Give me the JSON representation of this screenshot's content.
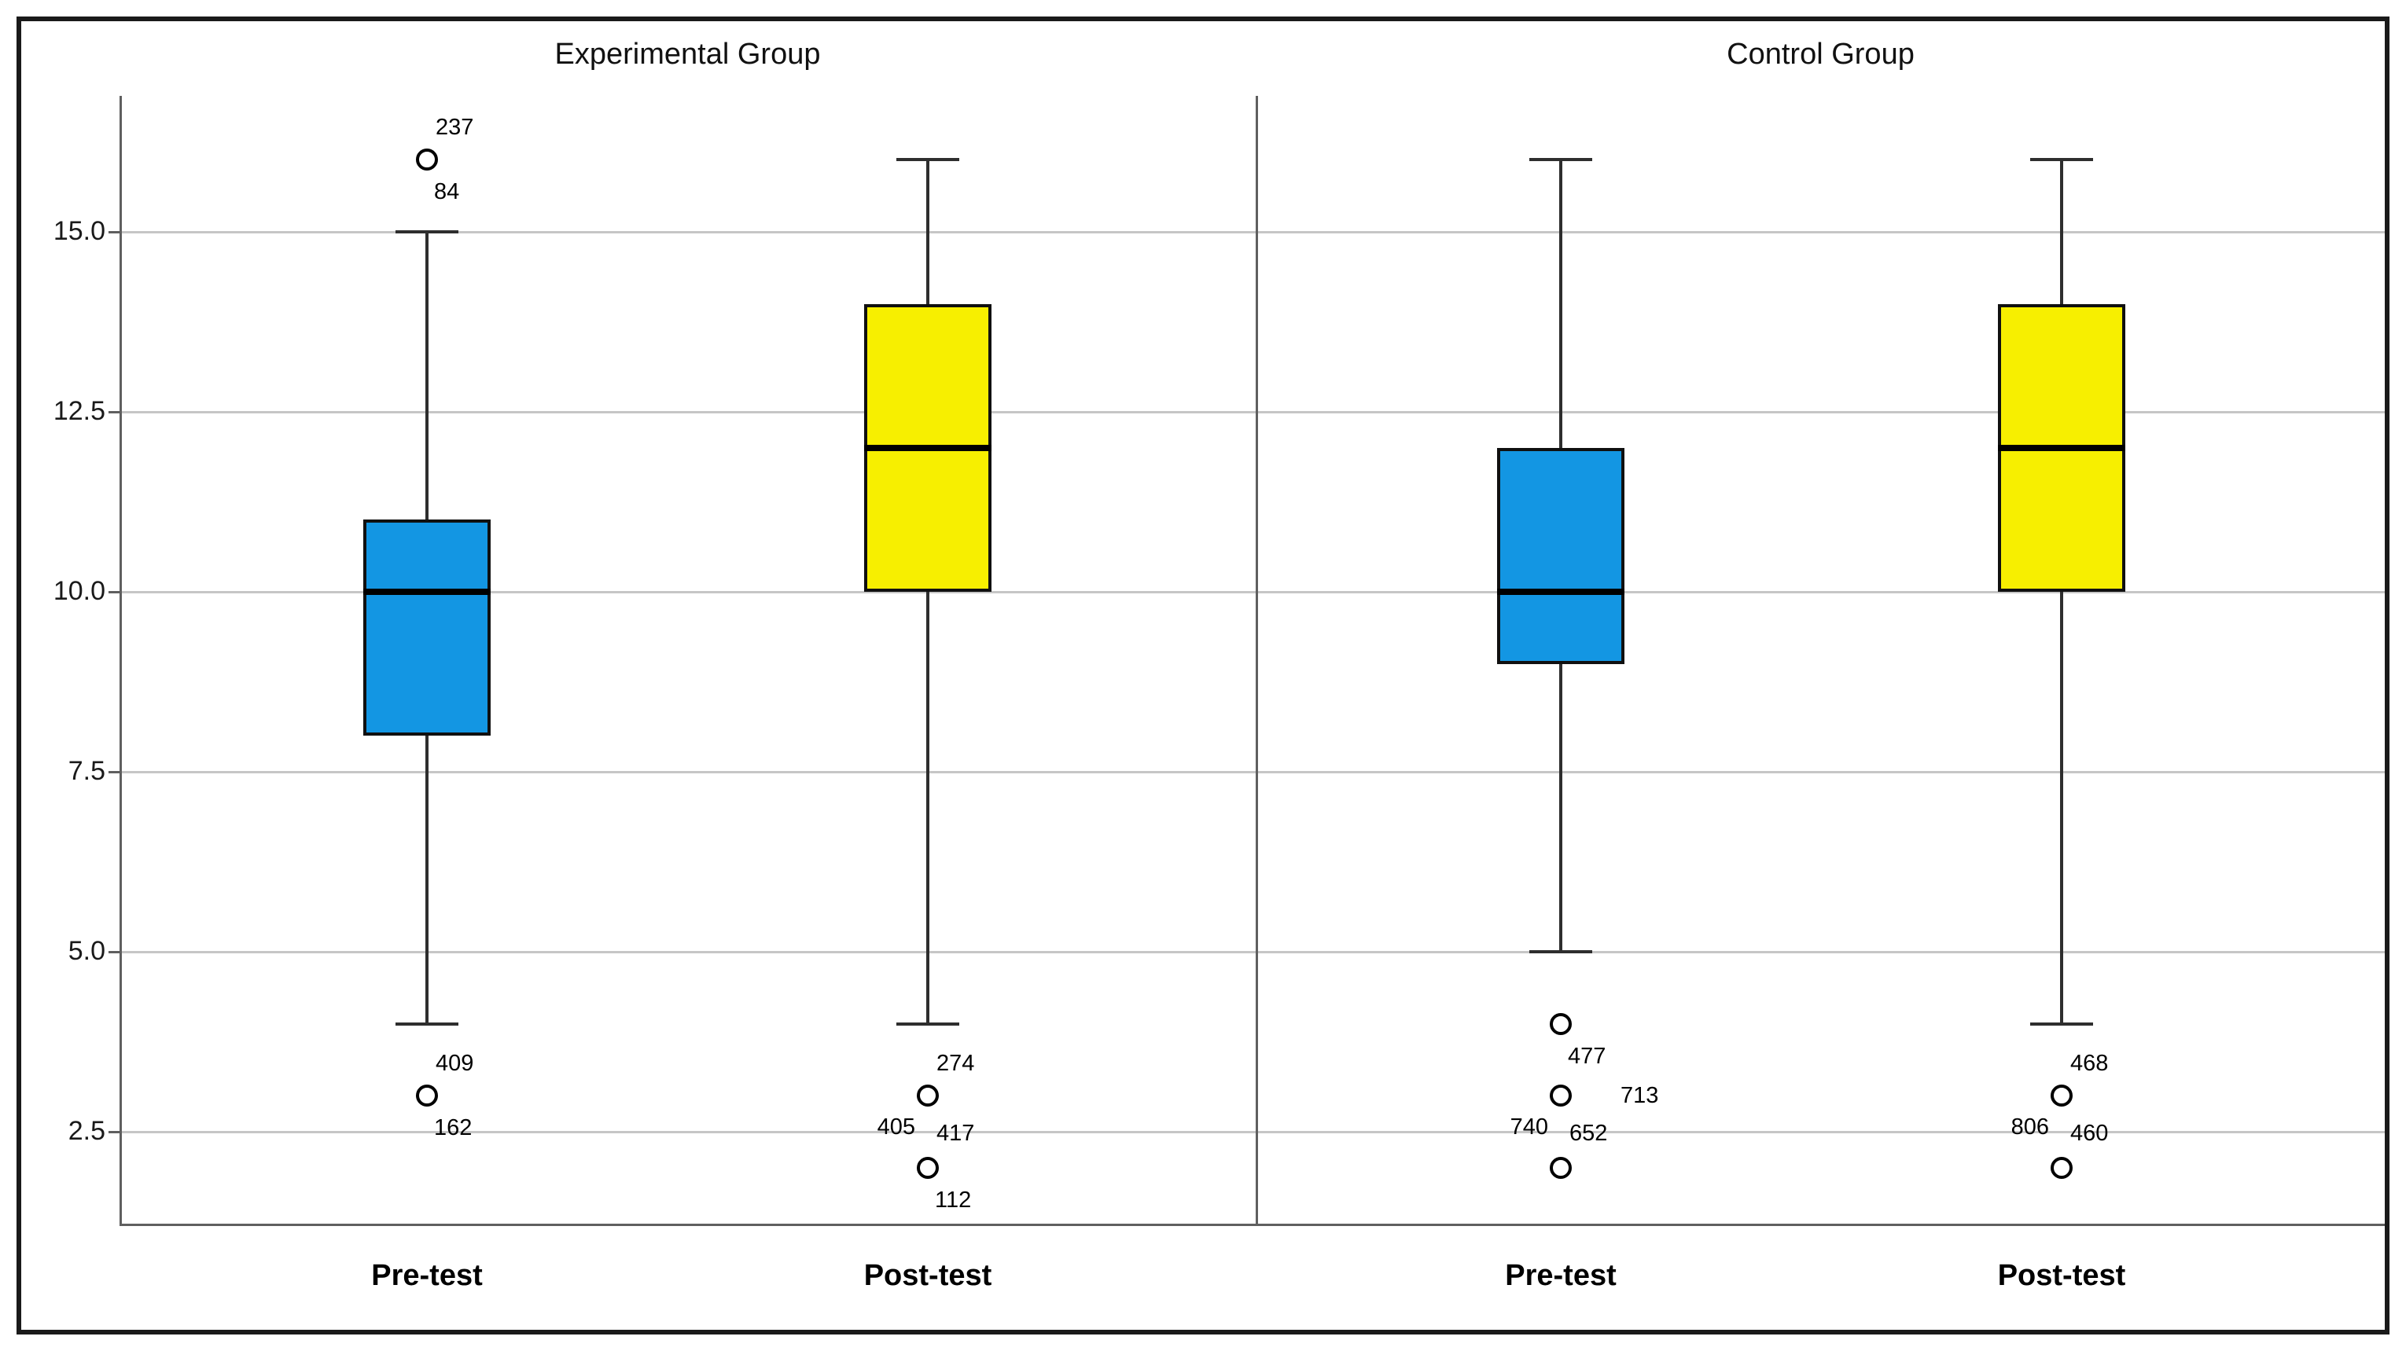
{
  "figure": {
    "background": "#ffffff",
    "border_color": "#1a1a1a"
  },
  "chart_data": {
    "type": "boxplot",
    "layout": "two-panel grouped boxplot, vertical",
    "grid": "horizontal gridlines on",
    "legend": "none",
    "ylim": [
      1.2,
      16.9
    ],
    "yticks": {
      "values": [
        15,
        12.5,
        10,
        7.5,
        5,
        2.5
      ],
      "labels": [
        "15.0",
        "12.5",
        "10.0",
        "7.5",
        "5.0",
        "2.5"
      ]
    },
    "colors": {
      "pretest_fill": "#1396e3",
      "posttest_fill": "#f7ef00",
      "box_border": "#101010",
      "median": "#000000",
      "whisker": "#2e2e2e",
      "gridline": "#c6c6c6",
      "axis": "#5f5f5f"
    },
    "panels": [
      {
        "title": "Experimental Group",
        "categories": [
          "Pre-test",
          "Post-test"
        ],
        "boxes": [
          {
            "category": "Pre-test",
            "fill": "#1396e3",
            "whisker_low": 4,
            "q1": 8,
            "median": 10,
            "q3": 11,
            "whisker_high": 15,
            "outliers": [
              {
                "value": 16,
                "labels": [
                  {
                    "text": "237",
                    "pos": "above"
                  },
                  {
                    "text": "84",
                    "pos": "below"
                  }
                ]
              },
              {
                "value": 3,
                "labels": [
                  {
                    "text": "409",
                    "pos": "above"
                  },
                  {
                    "text": "162",
                    "pos": "below"
                  }
                ]
              }
            ]
          },
          {
            "category": "Post-test",
            "fill": "#f7ef00",
            "whisker_low": 4,
            "q1": 10,
            "median": 12,
            "q3": 14,
            "whisker_high": 16,
            "outliers": [
              {
                "value": 3,
                "labels": [
                  {
                    "text": "274",
                    "pos": "above"
                  },
                  {
                    "text": "405",
                    "pos": "left-below"
                  },
                  {
                    "text": "417",
                    "pos": "right-below"
                  }
                ]
              },
              {
                "value": 2,
                "labels": [
                  {
                    "text": "112",
                    "pos": "below"
                  }
                ]
              }
            ]
          }
        ]
      },
      {
        "title": "Control Group",
        "categories": [
          "Pre-test",
          "Post-test"
        ],
        "boxes": [
          {
            "category": "Pre-test",
            "fill": "#1396e3",
            "whisker_low": 5,
            "q1": 9,
            "median": 10,
            "q3": 12,
            "whisker_high": 16,
            "outliers": [
              {
                "value": 4,
                "labels": [
                  {
                    "text": "477",
                    "pos": "below"
                  }
                ]
              },
              {
                "value": 3,
                "labels": [
                  {
                    "text": "713",
                    "pos": "right"
                  },
                  {
                    "text": "740",
                    "pos": "left-below"
                  },
                  {
                    "text": "652",
                    "pos": "right-below"
                  }
                ]
              },
              {
                "value": 2,
                "labels": []
              }
            ]
          },
          {
            "category": "Post-test",
            "fill": "#f7ef00",
            "whisker_low": 4,
            "q1": 10,
            "median": 12,
            "q3": 14,
            "whisker_high": 16,
            "outliers": [
              {
                "value": 3,
                "labels": [
                  {
                    "text": "468",
                    "pos": "above"
                  },
                  {
                    "text": "806",
                    "pos": "left-below"
                  },
                  {
                    "text": "460",
                    "pos": "right-below"
                  }
                ]
              },
              {
                "value": 2,
                "labels": []
              }
            ]
          }
        ]
      }
    ]
  }
}
